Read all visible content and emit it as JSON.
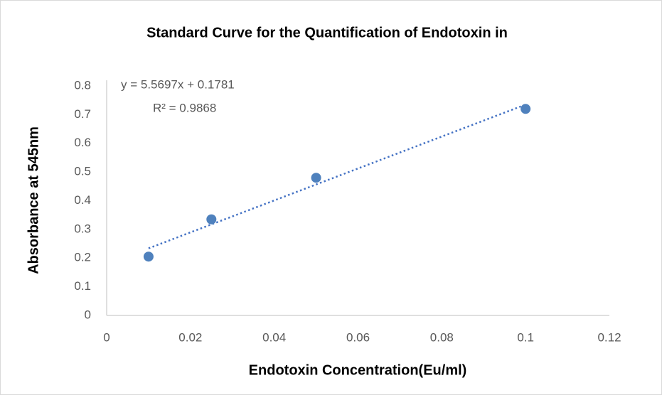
{
  "chart_data": {
    "type": "scatter",
    "title": "Standard Curve for the Quantification of Endotoxin in",
    "x_label": "Endotoxin Concentration(Eu/ml)",
    "y_label": "Absorbance at 545nm",
    "series": [
      {
        "name": "Absorbance",
        "color": "#4f81bd",
        "x": [
          0.01,
          0.025,
          0.05,
          0.1
        ],
        "values": [
          0.205,
          0.335,
          0.48,
          0.72
        ]
      }
    ],
    "trendline": {
      "equation": "y = 5.5697x + 0.1781",
      "slope": 5.5697,
      "intercept": 0.1781,
      "r2_label": "R² = 0.9868",
      "r2": 0.9868,
      "color": "#4472c4"
    },
    "xlim": [
      0,
      0.12
    ],
    "xticks": [
      0,
      0.02,
      0.04,
      0.06,
      0.08,
      0.1,
      0.12
    ],
    "ylim": [
      0,
      0.8
    ],
    "yticks": [
      0,
      0.1,
      0.2,
      0.3,
      0.4,
      0.5,
      0.6,
      0.7,
      0.8
    ],
    "grid": false
  }
}
